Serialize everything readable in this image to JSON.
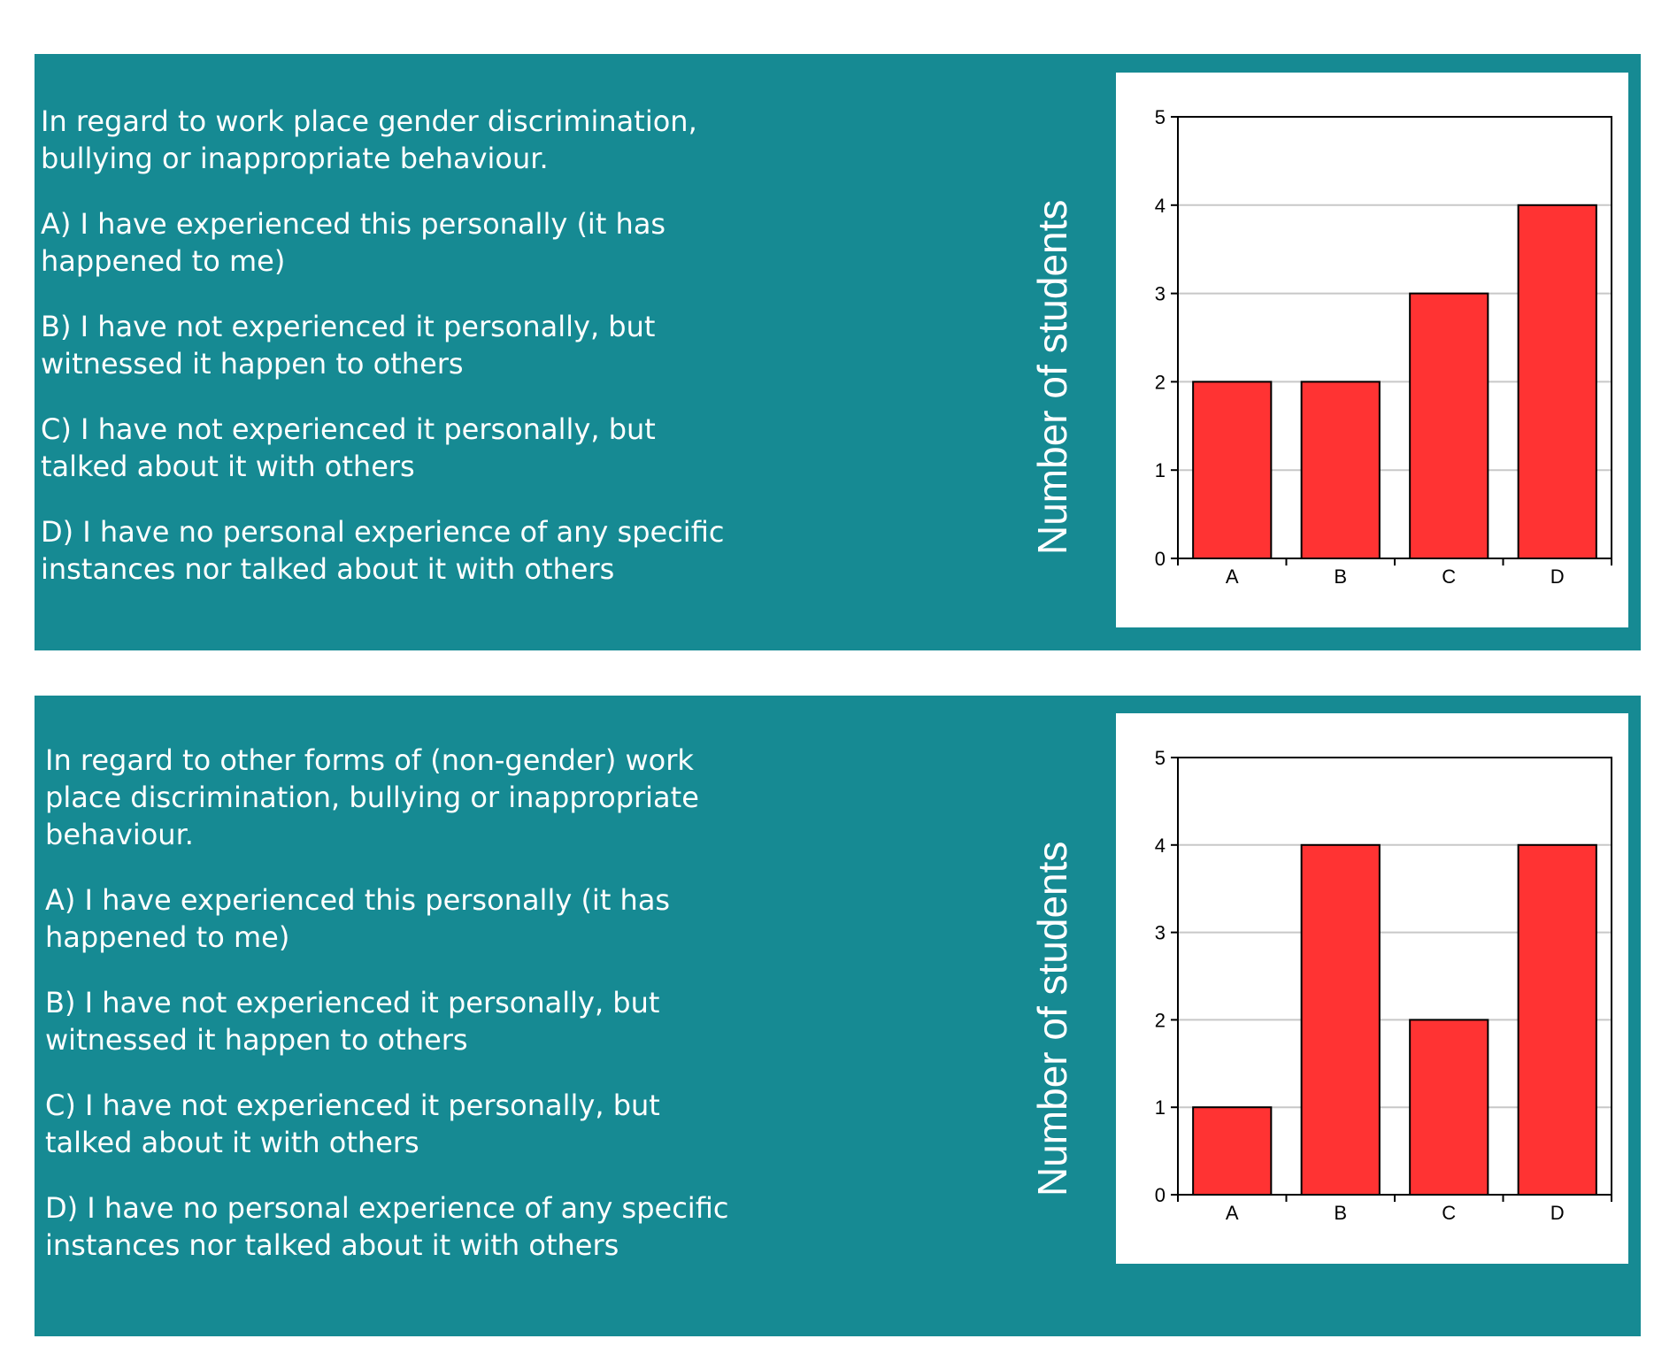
{
  "panels": [
    {
      "question": {
        "intro": "In regard to work place gender discrimination, bullying or inappropriate behaviour.",
        "options": [
          "A) I have experienced this personally (it has happened to me)",
          "B) I have not experienced it personally, but witnessed it happen to others",
          "C) I have not experienced it personally, but talked about it with others",
          "D) I have no personal experience of any specific instances nor talked about it with others"
        ]
      },
      "y_axis_label": "Number of students"
    },
    {
      "question": {
        "intro": "In regard to other forms of (non-gender) work place discrimination, bullying or inappropriate behaviour.",
        "options": [
          "A) I have experienced this personally (it has happened to me)",
          "B) I have not experienced it personally, but witnessed it happen to others",
          "C) I have not experienced it personally, but talked about it with others",
          "D) I have no personal experience of any specific instances nor talked about it with others"
        ]
      },
      "y_axis_label": "Number of students"
    }
  ],
  "chart_data": [
    {
      "type": "bar",
      "categories": [
        "A",
        "B",
        "C",
        "D"
      ],
      "values": [
        2,
        2,
        3,
        4
      ],
      "ylabel": "Number of students",
      "ylim": [
        0,
        5
      ],
      "yticks": [
        0,
        1,
        2,
        3,
        4,
        5
      ],
      "grid": true,
      "bar_color": "#FF3333"
    },
    {
      "type": "bar",
      "categories": [
        "A",
        "B",
        "C",
        "D"
      ],
      "values": [
        1,
        4,
        2,
        4
      ],
      "ylabel": "Number of students",
      "ylim": [
        0,
        5
      ],
      "yticks": [
        0,
        1,
        2,
        3,
        4,
        5
      ],
      "grid": true,
      "bar_color": "#FF3333"
    }
  ],
  "colors": {
    "panel_background": "#168A93",
    "text": "#FFFFFF",
    "bar_fill": "#FF3333",
    "gridline": "#C8C8C8"
  }
}
